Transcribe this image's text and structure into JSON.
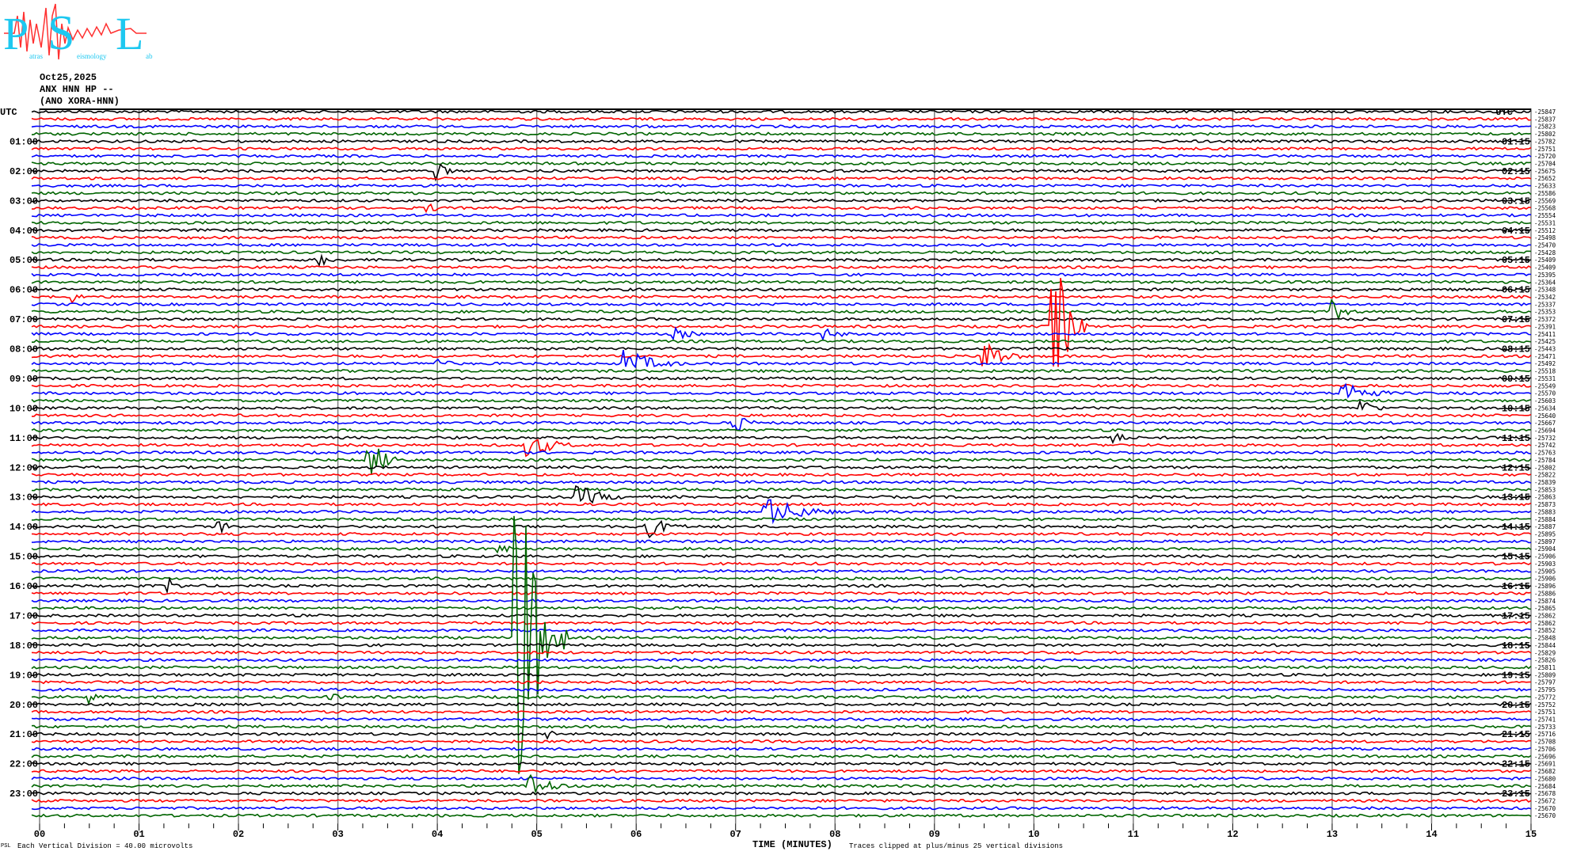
{
  "logo": {
    "text": "PSL",
    "subtitle_parts": [
      "atras",
      "eismology",
      "ab"
    ],
    "colors": {
      "letters": "#1ec8f0",
      "wave": "#ff3030"
    }
  },
  "header": {
    "date": "Oct25,2025",
    "station": "ANX HNN HP --",
    "site": "(ANO XORA-HNN)"
  },
  "axes": {
    "left_title": "UTC",
    "right_title": "UTC",
    "left_hours": [
      "01:00",
      "02:00",
      "03:00",
      "04:00",
      "05:00",
      "06:00",
      "07:00",
      "08:00",
      "09:00",
      "10:00",
      "11:00",
      "12:00",
      "13:00",
      "14:00",
      "15:00",
      "16:00",
      "17:00",
      "18:00",
      "19:00",
      "20:00",
      "21:00",
      "22:00",
      "23:00"
    ],
    "right_hours": [
      "01:15",
      "02:15",
      "03:15",
      "04:15",
      "05:15",
      "06:15",
      "07:15",
      "08:15",
      "09:15",
      "10:15",
      "11:15",
      "12:15",
      "13:15",
      "14:15",
      "15:15",
      "16:15",
      "17:15",
      "18:15",
      "19:15",
      "20:15",
      "21:15",
      "22:15",
      "23:15"
    ],
    "x_ticks": [
      "00",
      "01",
      "02",
      "03",
      "04",
      "05",
      "06",
      "07",
      "08",
      "09",
      "10",
      "11",
      "12",
      "13",
      "14",
      "15"
    ],
    "x_label": "TIME (MINUTES)"
  },
  "trace_offsets": [
    "-25847",
    "-25837",
    "-25823",
    "-25802",
    "-25782",
    "-25751",
    "-25720",
    "-25704",
    "-25675",
    "-25652",
    "-25633",
    "-25586",
    "-25569",
    "-25568",
    "-25554",
    "-25531",
    "-25512",
    "-25498",
    "-25470",
    "-25428",
    "-25409",
    "-25409",
    "-25395",
    "-25364",
    "-25348",
    "-25342",
    "-25337",
    "-25353",
    "-25372",
    "-25391",
    "-25411",
    "-25425",
    "-25443",
    "-25471",
    "-25492",
    "-25518",
    "-25531",
    "-25549",
    "-25570",
    "-25603",
    "-25634",
    "-25640",
    "-25667",
    "-25694",
    "-25732",
    "-25742",
    "-25763",
    "-25784",
    "-25802",
    "-25822",
    "-25839",
    "-25853",
    "-25863",
    "-25873",
    "-25883",
    "-25884",
    "-25887",
    "-25895",
    "-25897",
    "-25904",
    "-25906",
    "-25903",
    "-25905",
    "-25906",
    "-25896",
    "-25886",
    "-25874",
    "-25865",
    "-25862",
    "-25862",
    "-25852",
    "-25848",
    "-25844",
    "-25829",
    "-25826",
    "-25811",
    "-25809",
    "-25797",
    "-25795",
    "-25772",
    "-25752",
    "-25751",
    "-25741",
    "-25733",
    "-25716",
    "-25708",
    "-25706",
    "-25696",
    "-25691",
    "-25682",
    "-25680",
    "-25684",
    "-25678",
    "-25672",
    "-25670",
    "-25670"
  ],
  "trace_colors": [
    "#000000",
    "#ff0000",
    "#0000ff",
    "#006400"
  ],
  "footer": {
    "scale_note": "Each Vertical Division =   40.00 microvolts",
    "clip_note": "Traces clipped at plus/minus 25 vertical divisions",
    "small_logo": "PSL"
  }
}
